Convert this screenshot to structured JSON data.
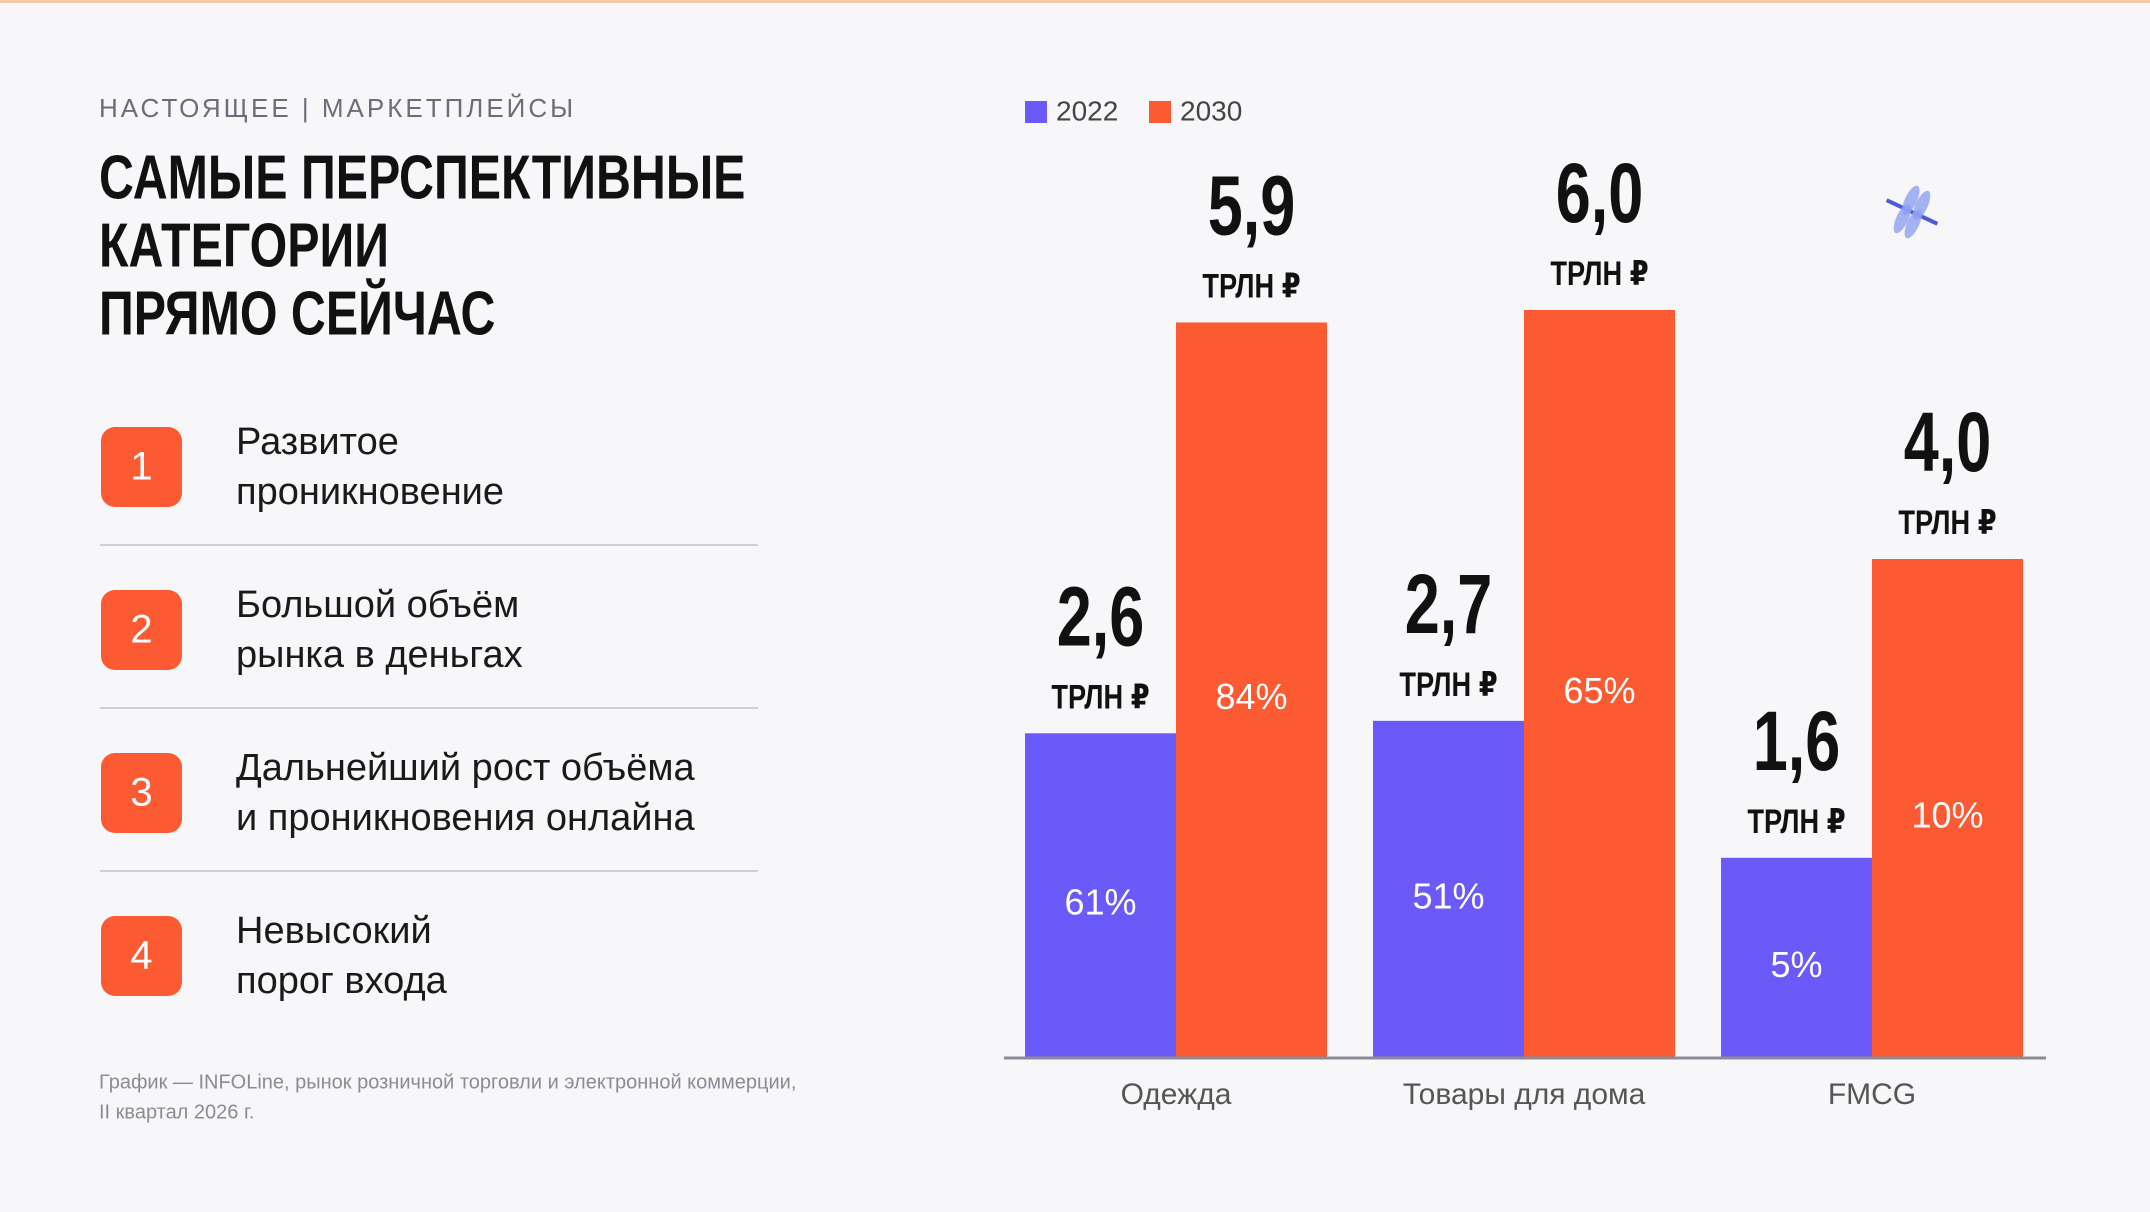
{
  "header": {
    "kicker": "НАСТОЯЩЕЕ | МАРКЕТПЛЕЙСЫ",
    "title_lines": [
      "САМЫЕ ПЕРСПЕКТИВНЫЕ",
      "КАТЕГОРИИ",
      "ПРЯМО СЕЙЧАС"
    ]
  },
  "items": [
    {
      "number": 1,
      "lines": [
        "Развитое",
        "проникновение"
      ]
    },
    {
      "number": 2,
      "lines": [
        "Большой объём",
        "рынка в деньгах"
      ]
    },
    {
      "number": 3,
      "lines": [
        "Дальнейший рост объёма",
        "и проникновения онлайна"
      ]
    },
    {
      "number": 4,
      "lines": [
        "Невысокий",
        "порог входа"
      ]
    }
  ],
  "footnote_lines": [
    "График — INFOLine, рынок розничной торговли и электронной коммерции,",
    "II квартал 2026 г."
  ],
  "chart_data": {
    "type": "bar",
    "categories": [
      "Одежда",
      "Товары для дома",
      "FMCG"
    ],
    "value_unit": "ТРЛН ₽",
    "series": [
      {
        "name": "2022",
        "color": "#6a5af9",
        "values": [
          2.6,
          2.7,
          1.6
        ],
        "value_labels": [
          "2,6",
          "2,7",
          "1,6"
        ],
        "shares": [
          61,
          51,
          5
        ],
        "share_labels": [
          "61%",
          "51%",
          "5%"
        ]
      },
      {
        "name": "2030",
        "color": "#fc5a32",
        "values": [
          5.9,
          6.0,
          4.0
        ],
        "value_labels": [
          "5,9",
          "6,0",
          "4,0"
        ],
        "shares": [
          84,
          65,
          10
        ],
        "share_labels": [
          "84%",
          "65%",
          "10%"
        ]
      }
    ]
  }
}
